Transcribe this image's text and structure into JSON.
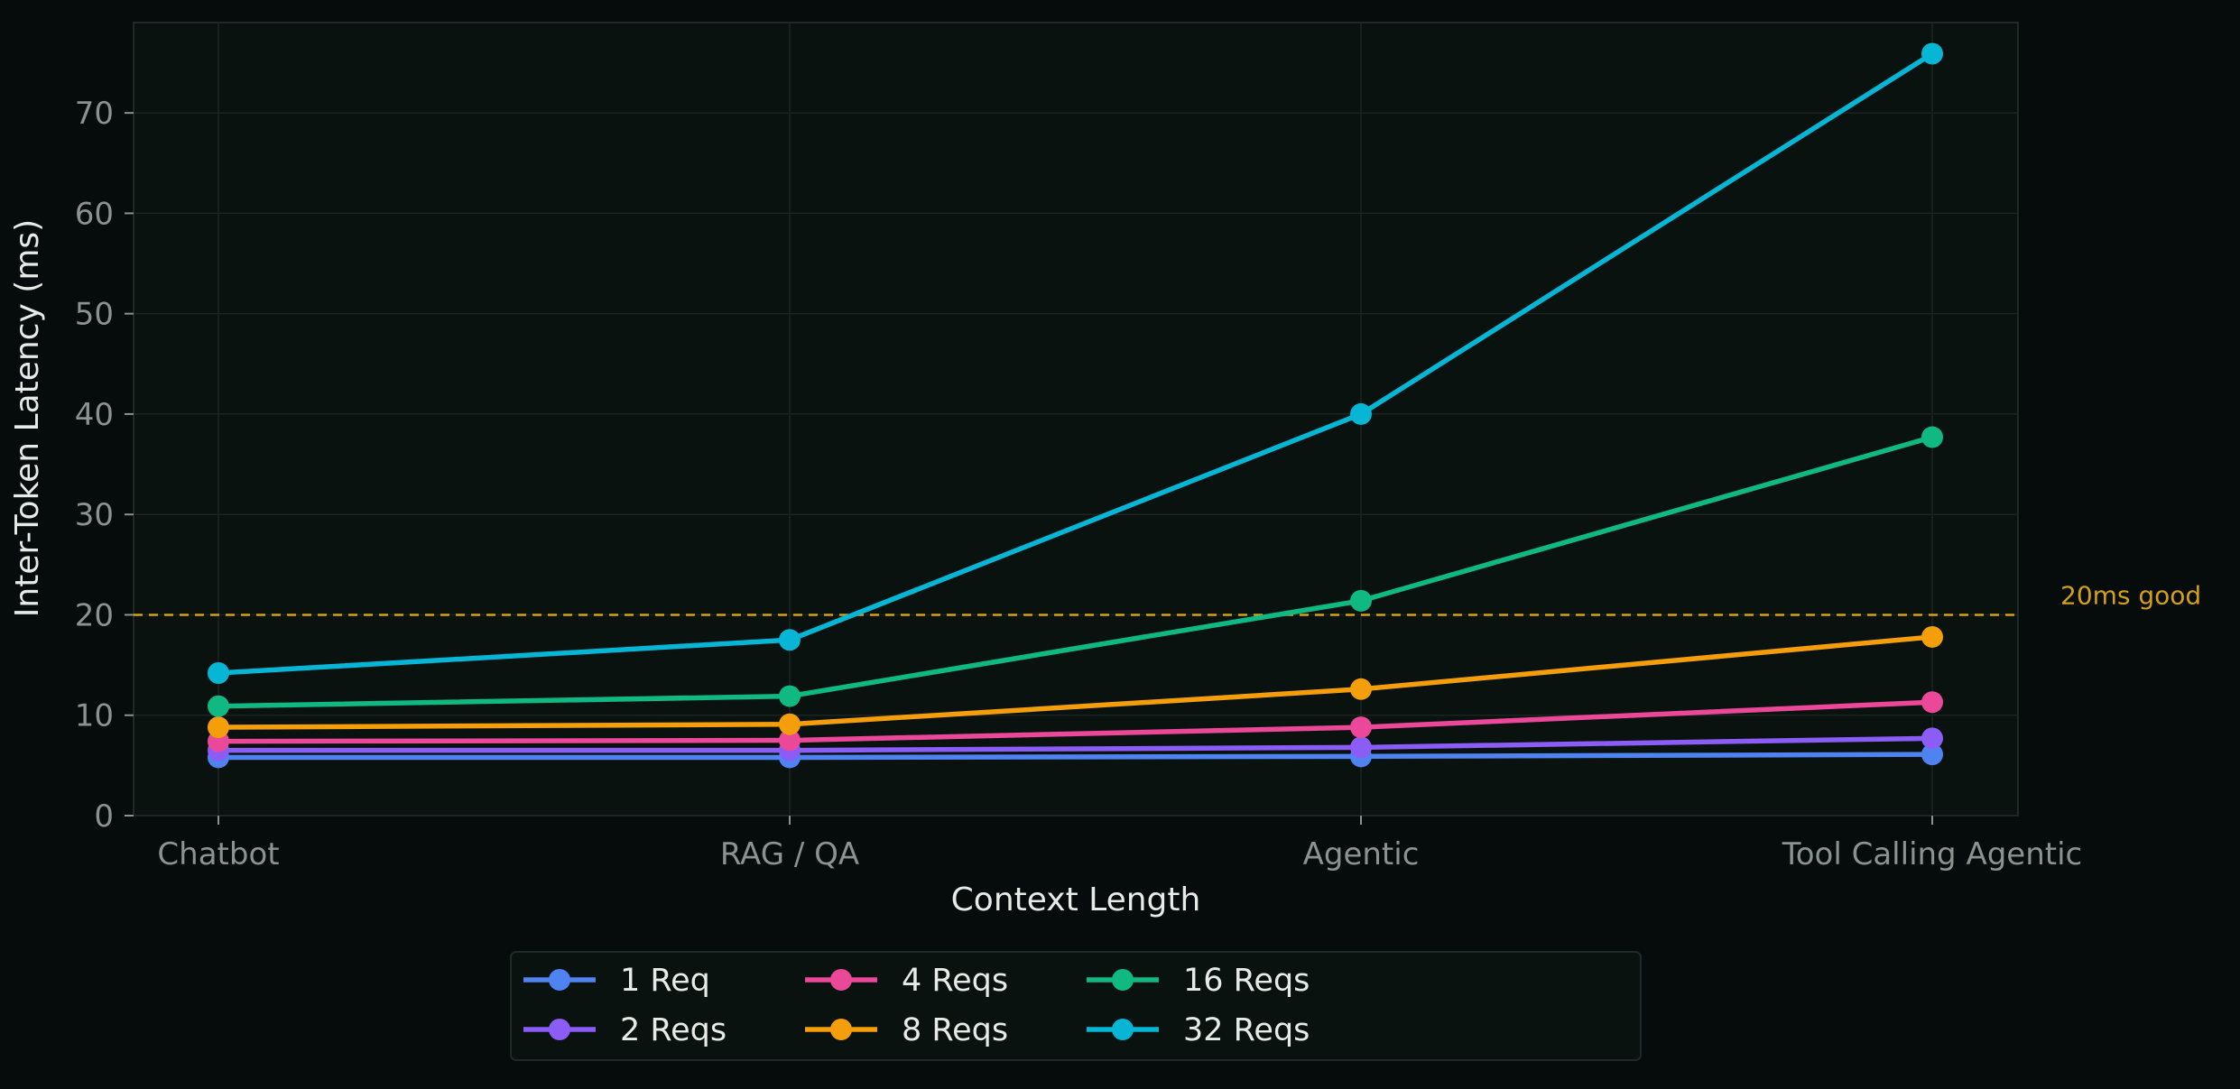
{
  "chart_data": {
    "type": "line",
    "title": "",
    "xlabel": "Context Length",
    "ylabel": "Inter-Token Latency (ms)",
    "categories": [
      "Chatbot",
      "RAG / QA",
      "Agentic",
      "Tool Calling Agentic"
    ],
    "ylim": [
      0,
      79
    ],
    "yticks": [
      0,
      10,
      20,
      30,
      40,
      50,
      60,
      70
    ],
    "grid": true,
    "legend_position": "bottom-center",
    "series": [
      {
        "name": "1 Req",
        "color": "#4f83f1",
        "values": [
          5.8,
          5.8,
          5.9,
          6.1
        ]
      },
      {
        "name": "2 Reqs",
        "color": "#8b5cf6",
        "values": [
          6.5,
          6.5,
          6.8,
          7.7
        ]
      },
      {
        "name": "4 Reqs",
        "color": "#ec4899",
        "values": [
          7.4,
          7.5,
          8.8,
          11.3
        ]
      },
      {
        "name": "8 Reqs",
        "color": "#f59e0b",
        "values": [
          8.8,
          9.1,
          12.6,
          17.8
        ]
      },
      {
        "name": "16 Reqs",
        "color": "#10b981",
        "values": [
          10.9,
          11.9,
          21.4,
          37.7
        ]
      },
      {
        "name": "32 Reqs",
        "color": "#06b6d4",
        "values": [
          14.2,
          17.5,
          40.0,
          75.9
        ]
      }
    ],
    "threshold": {
      "value": 20,
      "label": "20ms good",
      "color": "#d4a017"
    }
  },
  "colors": {
    "background": "#060b0b",
    "plot_background": "#0a1210",
    "axis_text": "#8a938f",
    "label_text": "#e6ebe8",
    "grid": "#1a2420"
  }
}
